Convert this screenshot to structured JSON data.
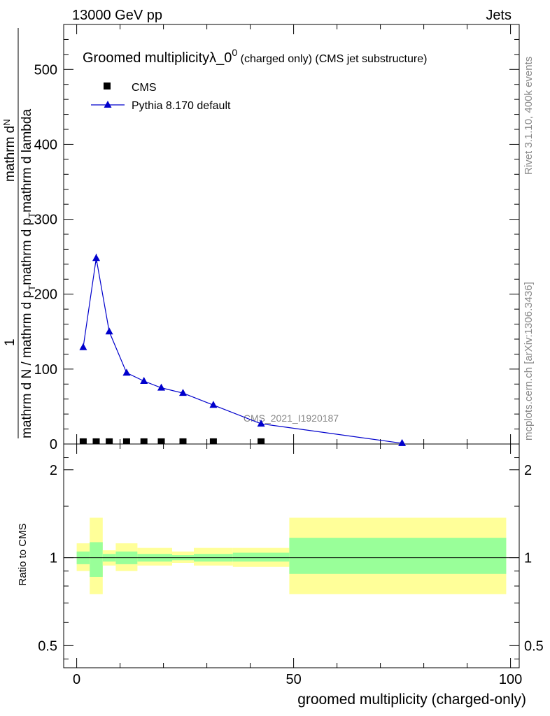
{
  "header": {
    "left": "13000 GeV pp",
    "right": "Jets"
  },
  "title": {
    "main": "Groomed multiplicityλ_0",
    "sup": "0",
    "suffix": " (charged only) (CMS jet substructure)"
  },
  "legend": {
    "cms": "CMS",
    "pythia": "Pythia 8.170 default"
  },
  "side_labels": {
    "rivet": "Rivet 3.1.10,  400k events",
    "mcplots": "mcplots.cern.ch [arXiv:1306.3436]"
  },
  "watermark": "CMS_2021_I1920187",
  "y_axis_label": {
    "numerator": "1",
    "denominator": "mathrm d N / mathrm d p",
    "denominator_sub": "T",
    "denominator_rest": "mathrm d p",
    "denominator_rest_sub": "T",
    "denominator_tail": "mathrm d lambda",
    "frac_top": "mathrm d",
    "frac_top2": "N"
  },
  "ratio_label": "Ratio to CMS",
  "x_axis_label": "groomed multiplicity (charged-only)",
  "colors": {
    "pythia": "#0000cc",
    "cms": "#000000",
    "band_inner": "#99ff99",
    "band_outer": "#ffff99",
    "watermark": "#888888"
  },
  "chart_data": {
    "type": "line",
    "x_range": [
      -3,
      102
    ],
    "upper": {
      "ylim": [
        0,
        560
      ],
      "yticks": [
        0,
        100,
        200,
        300,
        400,
        500
      ],
      "series": [
        {
          "name": "CMS",
          "marker": "square",
          "x": [
            1.5,
            4.5,
            7.5,
            11.5,
            15.5,
            19.5,
            24.5,
            31.5,
            42.5
          ],
          "y": [
            1,
            1,
            1,
            1,
            1,
            1,
            1,
            1,
            1
          ]
        },
        {
          "name": "Pythia 8.170 default",
          "marker": "triangle",
          "x": [
            1.5,
            4.5,
            7.5,
            11.5,
            15.5,
            19.5,
            24.5,
            31.5,
            42.5,
            75
          ],
          "y": [
            129,
            248,
            150,
            95,
            84,
            75,
            68,
            52,
            27,
            1
          ],
          "yerr": [
            2,
            6,
            2,
            1,
            1,
            1,
            1,
            1,
            1,
            0
          ]
        }
      ]
    },
    "lower": {
      "scale": "log",
      "ylim": [
        0.42,
        2.45
      ],
      "yticks": [
        0.5,
        1,
        2
      ],
      "ytick_labels": [
        "0.5",
        "1",
        "2"
      ],
      "reference": 1,
      "bands": [
        {
          "x0": 0,
          "x1": 3,
          "inner": [
            0.95,
            1.05
          ],
          "outer": [
            0.9,
            1.12
          ]
        },
        {
          "x0": 3,
          "x1": 6,
          "inner": [
            0.86,
            1.13
          ],
          "outer": [
            0.75,
            1.37
          ]
        },
        {
          "x0": 6,
          "x1": 9,
          "inner": [
            0.97,
            1.03
          ],
          "outer": [
            0.94,
            1.06
          ]
        },
        {
          "x0": 9,
          "x1": 14,
          "inner": [
            0.95,
            1.05
          ],
          "outer": [
            0.9,
            1.12
          ]
        },
        {
          "x0": 14,
          "x1": 22,
          "inner": [
            0.97,
            1.03
          ],
          "outer": [
            0.94,
            1.08
          ]
        },
        {
          "x0": 22,
          "x1": 27,
          "inner": [
            0.98,
            1.02
          ],
          "outer": [
            0.96,
            1.05
          ]
        },
        {
          "x0": 27,
          "x1": 36,
          "inner": [
            0.97,
            1.03
          ],
          "outer": [
            0.94,
            1.08
          ]
        },
        {
          "x0": 36,
          "x1": 49,
          "inner": [
            0.97,
            1.04
          ],
          "outer": [
            0.93,
            1.08
          ]
        },
        {
          "x0": 49,
          "x1": 99,
          "inner": [
            0.88,
            1.17
          ],
          "outer": [
            0.75,
            1.37
          ]
        }
      ]
    },
    "xticks": [
      0,
      50,
      100
    ]
  }
}
